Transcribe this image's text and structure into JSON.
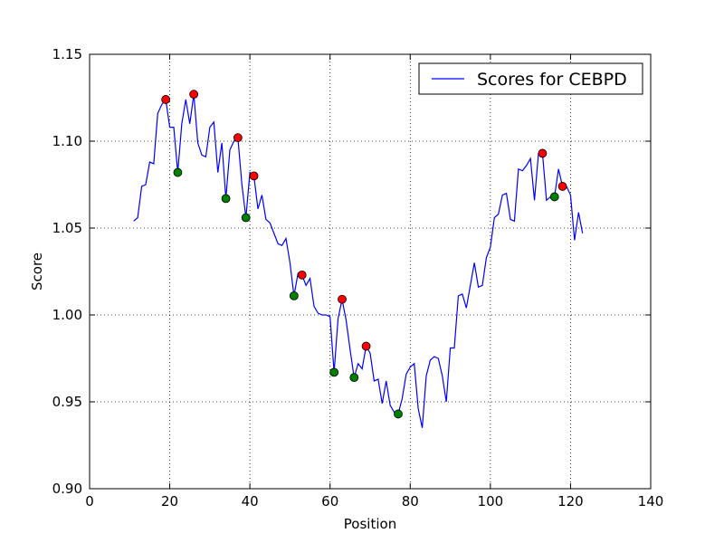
{
  "chart_data": {
    "type": "line",
    "xlabel": "Position",
    "ylabel": "Score",
    "x": [
      11,
      12,
      13,
      14,
      15,
      16,
      17,
      18,
      19,
      20,
      21,
      22,
      23,
      24,
      25,
      26,
      27,
      28,
      29,
      30,
      31,
      32,
      33,
      34,
      35,
      36,
      37,
      38,
      39,
      40,
      41,
      42,
      43,
      44,
      45,
      46,
      47,
      48,
      49,
      50,
      51,
      52,
      53,
      54,
      55,
      56,
      57,
      58,
      59,
      60,
      61,
      62,
      63,
      64,
      65,
      66,
      67,
      68,
      69,
      70,
      71,
      72,
      73,
      74,
      75,
      76,
      77,
      78,
      79,
      80,
      81,
      82,
      83,
      84,
      85,
      86,
      87,
      88,
      89,
      90,
      91,
      92,
      93,
      94,
      95,
      96,
      97,
      98,
      99,
      100,
      101,
      102,
      103,
      104,
      105,
      106,
      107,
      108,
      109,
      110,
      111,
      112,
      113,
      114,
      115,
      116,
      117,
      118,
      119,
      120,
      121,
      122,
      123
    ],
    "series": [
      {
        "name": "Scores for CEBPD",
        "color": "#0000ff",
        "values": [
          1.054,
          1.056,
          1.074,
          1.075,
          1.088,
          1.087,
          1.116,
          1.121,
          1.124,
          1.108,
          1.108,
          1.082,
          1.11,
          1.124,
          1.11,
          1.127,
          1.099,
          1.092,
          1.091,
          1.108,
          1.111,
          1.082,
          1.099,
          1.067,
          1.095,
          1.1,
          1.102,
          1.075,
          1.056,
          1.082,
          1.08,
          1.061,
          1.069,
          1.055,
          1.053,
          1.047,
          1.041,
          1.04,
          1.044,
          1.03,
          1.011,
          1.024,
          1.023,
          1.017,
          1.021,
          1.005,
          1.001,
          1.0,
          1.0,
          0.999,
          0.967,
          0.998,
          1.009,
          0.997,
          0.98,
          0.964,
          0.972,
          0.969,
          0.982,
          0.978,
          0.962,
          0.963,
          0.949,
          0.962,
          0.948,
          0.944,
          0.943,
          0.952,
          0.966,
          0.97,
          0.972,
          0.946,
          0.935,
          0.965,
          0.974,
          0.976,
          0.975,
          0.965,
          0.95,
          0.981,
          0.981,
          1.011,
          1.012,
          1.004,
          1.017,
          1.03,
          1.016,
          1.017,
          1.033,
          1.039,
          1.056,
          1.058,
          1.069,
          1.07,
          1.055,
          1.054,
          1.084,
          1.083,
          1.086,
          1.09,
          1.066,
          1.093,
          1.093,
          1.066,
          1.068,
          1.068,
          1.084,
          1.074,
          1.074,
          1.069,
          1.043,
          1.059,
          1.047
        ]
      },
      {
        "type": "scatter",
        "color": "#ff0000",
        "x": [
          19,
          26,
          37,
          41,
          53,
          63,
          69,
          113,
          118
        ],
        "values": [
          1.124,
          1.127,
          1.102,
          1.08,
          1.023,
          1.009,
          0.982,
          1.093,
          1.074
        ]
      },
      {
        "type": "scatter",
        "color": "#008000",
        "x": [
          22,
          34,
          39,
          51,
          61,
          66,
          77,
          116
        ],
        "values": [
          1.082,
          1.067,
          1.056,
          1.011,
          0.967,
          0.964,
          0.943,
          1.068
        ]
      }
    ],
    "xlim": [
      0,
      140
    ],
    "xticks": [
      0,
      20,
      40,
      60,
      80,
      100,
      120,
      140
    ],
    "ylim": [
      0.9,
      1.15
    ],
    "yticks": [
      {
        "value": 0.9,
        "label": "0.90"
      },
      0.95,
      {
        "value": 1.0,
        "label": "1.00"
      },
      1.05,
      {
        "value": 1.1,
        "label": "1.10"
      },
      1.15
    ],
    "grid": true,
    "legend": "upper right"
  }
}
